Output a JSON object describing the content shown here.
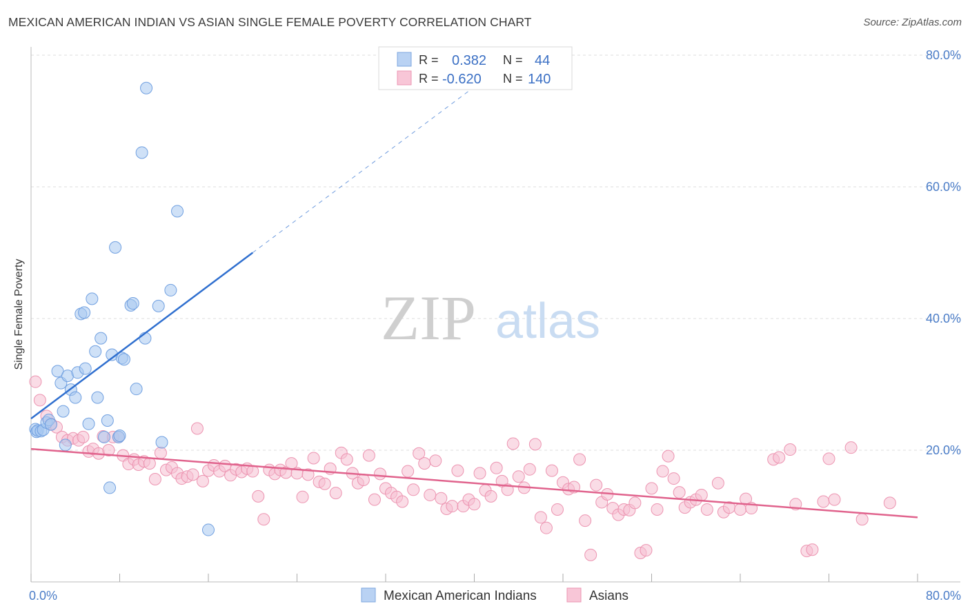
{
  "chart_data": {
    "type": "scatter",
    "title": "MEXICAN AMERICAN INDIAN VS ASIAN SINGLE FEMALE POVERTY CORRELATION CHART",
    "source": "Source: ZipAtlas.com",
    "xlabel": "",
    "ylabel": "Single Female Poverty",
    "xlim": [
      0,
      80
    ],
    "ylim": [
      0,
      80
    ],
    "x_tick_labels": [
      "0.0%",
      "80.0%"
    ],
    "y_tick_labels": [
      "20.0%",
      "40.0%",
      "60.0%",
      "80.0%"
    ],
    "y_ticks": [
      20,
      40,
      60,
      80
    ],
    "x_ticks": [
      0,
      8,
      16,
      24,
      32,
      40,
      48,
      56,
      64,
      72,
      80
    ],
    "grid": true,
    "watermark": {
      "zip": "ZIP",
      "atlas": "atlas"
    },
    "stats_box": {
      "rows": [
        {
          "series": "Mexican American Indians",
          "r_label": "R =",
          "r_value": "0.382",
          "n_label": "N =",
          "n_value": "44"
        },
        {
          "series": "Asians",
          "r_label": "R =",
          "r_value": "-0.620",
          "n_label": "N =",
          "n_value": "140"
        }
      ]
    },
    "series": [
      {
        "name": "Mexican American Indians",
        "color": "#6f9fe0",
        "fill": "#a8c8f0",
        "line_color": "#2f6fcf",
        "trend": {
          "x0": 0,
          "y0": 24.8,
          "x1": 20,
          "y1": 50.0,
          "dash_to_x": 42,
          "dash_to_y": 77.7
        },
        "points": [
          [
            0.4,
            23.2
          ],
          [
            0.5,
            22.8
          ],
          [
            0.6,
            23.0
          ],
          [
            0.9,
            22.9
          ],
          [
            1.1,
            23.1
          ],
          [
            1.4,
            24.2
          ],
          [
            1.6,
            24.6
          ],
          [
            1.8,
            23.9
          ],
          [
            2.4,
            32.0
          ],
          [
            2.7,
            30.2
          ],
          [
            2.9,
            25.9
          ],
          [
            3.1,
            20.8
          ],
          [
            3.3,
            31.3
          ],
          [
            3.6,
            29.2
          ],
          [
            4.0,
            28.0
          ],
          [
            4.2,
            31.8
          ],
          [
            4.5,
            40.7
          ],
          [
            4.8,
            40.9
          ],
          [
            4.9,
            32.4
          ],
          [
            5.2,
            24.0
          ],
          [
            5.5,
            43.0
          ],
          [
            5.8,
            35.0
          ],
          [
            6.0,
            28.0
          ],
          [
            6.3,
            37.0
          ],
          [
            6.6,
            22.0
          ],
          [
            6.9,
            24.5
          ],
          [
            7.1,
            14.3
          ],
          [
            7.3,
            34.5
          ],
          [
            7.6,
            50.8
          ],
          [
            7.9,
            22.0
          ],
          [
            8.2,
            34.0
          ],
          [
            8.4,
            33.8
          ],
          [
            9.0,
            42.0
          ],
          [
            9.2,
            42.3
          ],
          [
            9.5,
            29.3
          ],
          [
            10.0,
            65.2
          ],
          [
            10.3,
            37.0
          ],
          [
            10.4,
            75.0
          ],
          [
            11.5,
            41.9
          ],
          [
            11.8,
            21.2
          ],
          [
            12.6,
            44.3
          ],
          [
            13.2,
            56.3
          ],
          [
            16.0,
            7.9
          ],
          [
            8.0,
            22.2
          ]
        ]
      },
      {
        "name": "Asians",
        "color": "#ec93b0",
        "fill": "#f6bfd2",
        "line_color": "#e0628c",
        "trend": {
          "x0": 0,
          "y0": 20.2,
          "x1": 80,
          "y1": 9.8
        },
        "points": [
          [
            0.4,
            30.4
          ],
          [
            0.8,
            27.6
          ],
          [
            1.4,
            25.2
          ],
          [
            1.8,
            24.0
          ],
          [
            2.3,
            23.5
          ],
          [
            2.8,
            22.0
          ],
          [
            3.3,
            21.5
          ],
          [
            3.8,
            21.8
          ],
          [
            4.3,
            21.5
          ],
          [
            4.7,
            22.0
          ],
          [
            5.2,
            19.8
          ],
          [
            5.6,
            20.2
          ],
          [
            6.1,
            19.5
          ],
          [
            6.5,
            22.1
          ],
          [
            7.0,
            20.0
          ],
          [
            7.4,
            22.0
          ],
          [
            7.9,
            22.0
          ],
          [
            8.3,
            19.2
          ],
          [
            8.8,
            17.9
          ],
          [
            9.3,
            18.6
          ],
          [
            9.7,
            17.8
          ],
          [
            10.2,
            18.3
          ],
          [
            10.7,
            18.0
          ],
          [
            11.2,
            15.6
          ],
          [
            11.7,
            19.6
          ],
          [
            12.2,
            17.0
          ],
          [
            12.7,
            17.4
          ],
          [
            13.2,
            16.5
          ],
          [
            13.6,
            15.7
          ],
          [
            14.1,
            16.0
          ],
          [
            14.6,
            16.3
          ],
          [
            15.0,
            23.3
          ],
          [
            15.5,
            15.3
          ],
          [
            16.0,
            16.9
          ],
          [
            16.5,
            17.7
          ],
          [
            17.0,
            16.8
          ],
          [
            17.5,
            17.6
          ],
          [
            18.0,
            16.2
          ],
          [
            18.5,
            17.1
          ],
          [
            19.0,
            16.7
          ],
          [
            19.5,
            17.2
          ],
          [
            20.0,
            16.8
          ],
          [
            20.5,
            13.0
          ],
          [
            21.0,
            9.5
          ],
          [
            21.5,
            17.0
          ],
          [
            22.0,
            16.4
          ],
          [
            22.5,
            17.0
          ],
          [
            23.0,
            16.6
          ],
          [
            23.5,
            18.0
          ],
          [
            24.0,
            16.5
          ],
          [
            24.5,
            12.9
          ],
          [
            25.0,
            16.3
          ],
          [
            25.5,
            18.8
          ],
          [
            26.0,
            15.2
          ],
          [
            26.5,
            14.9
          ],
          [
            27.0,
            17.2
          ],
          [
            27.5,
            13.5
          ],
          [
            28.0,
            19.6
          ],
          [
            28.5,
            18.6
          ],
          [
            29.0,
            16.5
          ],
          [
            29.5,
            15.0
          ],
          [
            30.0,
            15.5
          ],
          [
            30.5,
            19.2
          ],
          [
            31.0,
            12.5
          ],
          [
            31.5,
            16.4
          ],
          [
            32.0,
            14.2
          ],
          [
            32.5,
            13.5
          ],
          [
            33.0,
            12.9
          ],
          [
            33.5,
            12.2
          ],
          [
            34.0,
            16.8
          ],
          [
            34.5,
            14.0
          ],
          [
            35.0,
            19.5
          ],
          [
            35.5,
            18.0
          ],
          [
            36.0,
            13.2
          ],
          [
            36.5,
            18.4
          ],
          [
            37.0,
            12.7
          ],
          [
            37.5,
            11.1
          ],
          [
            38.0,
            11.5
          ],
          [
            38.5,
            16.9
          ],
          [
            39.0,
            11.5
          ],
          [
            39.5,
            12.5
          ],
          [
            40.0,
            11.8
          ],
          [
            40.5,
            16.5
          ],
          [
            41.0,
            13.9
          ],
          [
            41.5,
            13.0
          ],
          [
            42.0,
            17.3
          ],
          [
            42.5,
            15.3
          ],
          [
            43.0,
            14.0
          ],
          [
            43.5,
            21.0
          ],
          [
            44.0,
            16.0
          ],
          [
            44.5,
            14.3
          ],
          [
            45.0,
            17.1
          ],
          [
            45.5,
            20.9
          ],
          [
            46.0,
            9.8
          ],
          [
            46.5,
            8.2
          ],
          [
            47.0,
            16.9
          ],
          [
            47.5,
            11.0
          ],
          [
            48.0,
            15.1
          ],
          [
            48.5,
            14.1
          ],
          [
            49.0,
            14.4
          ],
          [
            49.5,
            18.6
          ],
          [
            50.0,
            9.3
          ],
          [
            50.5,
            4.1
          ],
          [
            51.0,
            14.7
          ],
          [
            51.5,
            12.1
          ],
          [
            52.0,
            13.3
          ],
          [
            52.5,
            11.2
          ],
          [
            53.0,
            10.2
          ],
          [
            53.5,
            11.0
          ],
          [
            54.0,
            10.9
          ],
          [
            54.5,
            12.0
          ],
          [
            55.0,
            4.4
          ],
          [
            55.5,
            4.8
          ],
          [
            56.0,
            14.2
          ],
          [
            56.5,
            11.0
          ],
          [
            57.0,
            16.8
          ],
          [
            57.5,
            19.1
          ],
          [
            58.0,
            15.7
          ],
          [
            58.5,
            13.6
          ],
          [
            59.0,
            11.3
          ],
          [
            59.5,
            12.1
          ],
          [
            60.0,
            12.5
          ],
          [
            60.5,
            13.2
          ],
          [
            61.0,
            11.0
          ],
          [
            62.0,
            15.0
          ],
          [
            62.5,
            10.6
          ],
          [
            63.0,
            11.3
          ],
          [
            64.0,
            11.0
          ],
          [
            64.5,
            12.6
          ],
          [
            65.0,
            11.2
          ],
          [
            67.0,
            18.6
          ],
          [
            67.5,
            18.9
          ],
          [
            68.5,
            20.1
          ],
          [
            70.0,
            4.7
          ],
          [
            70.5,
            4.9
          ],
          [
            71.5,
            12.2
          ],
          [
            72.0,
            18.7
          ],
          [
            72.5,
            12.5
          ],
          [
            74.0,
            20.4
          ],
          [
            75.0,
            9.5
          ],
          [
            77.5,
            12.0
          ],
          [
            69.0,
            11.8
          ]
        ]
      }
    ]
  }
}
